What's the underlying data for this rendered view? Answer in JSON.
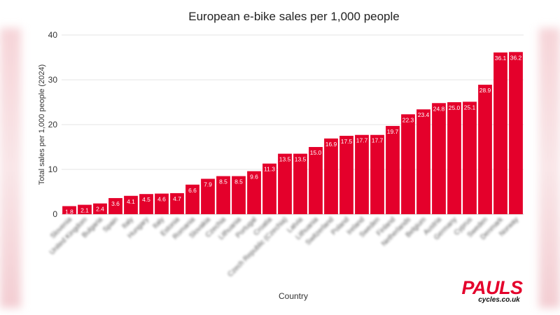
{
  "chart_data": {
    "type": "bar",
    "title": "European e-bike sales per 1,000 people",
    "xlabel": "Country",
    "ylabel": "Total sales per 1,000 people (2024)",
    "ylim": [
      0,
      40
    ],
    "yticks": [
      0,
      10,
      20,
      30,
      40
    ],
    "grid": true,
    "bar_color": "#e4002b",
    "categories": [
      "Slovenia",
      "United Kingdom",
      "Bulgaria",
      "Spain",
      "Italy",
      "Hungary",
      "Italy",
      "Estonia",
      "Romania",
      "Slovakia",
      "Czechia",
      "Lithuania",
      "Portugal",
      "Croatia",
      "Czech Republic (Czechia)",
      "Latvia",
      "Lithuania",
      "Switzerland",
      "Poland",
      "Ireland",
      "Sweden",
      "Finland",
      "Netherlands",
      "Belgium",
      "Austria",
      "Germany",
      "Cyprus",
      "Sweden",
      "Denmark",
      "Norway"
    ],
    "values": [
      1.8,
      2.1,
      2.4,
      3.6,
      4.1,
      4.5,
      4.6,
      4.7,
      6.6,
      7.9,
      8.5,
      8.5,
      9.6,
      11.3,
      13.5,
      13.5,
      15.0,
      16.9,
      17.5,
      17.7,
      17.7,
      19.7,
      22.3,
      23.4,
      24.8,
      25.0,
      25.1,
      28.9,
      36.1,
      36.2
    ]
  },
  "logo": {
    "main": "PAULS",
    "sub": "cycles.co.uk"
  }
}
